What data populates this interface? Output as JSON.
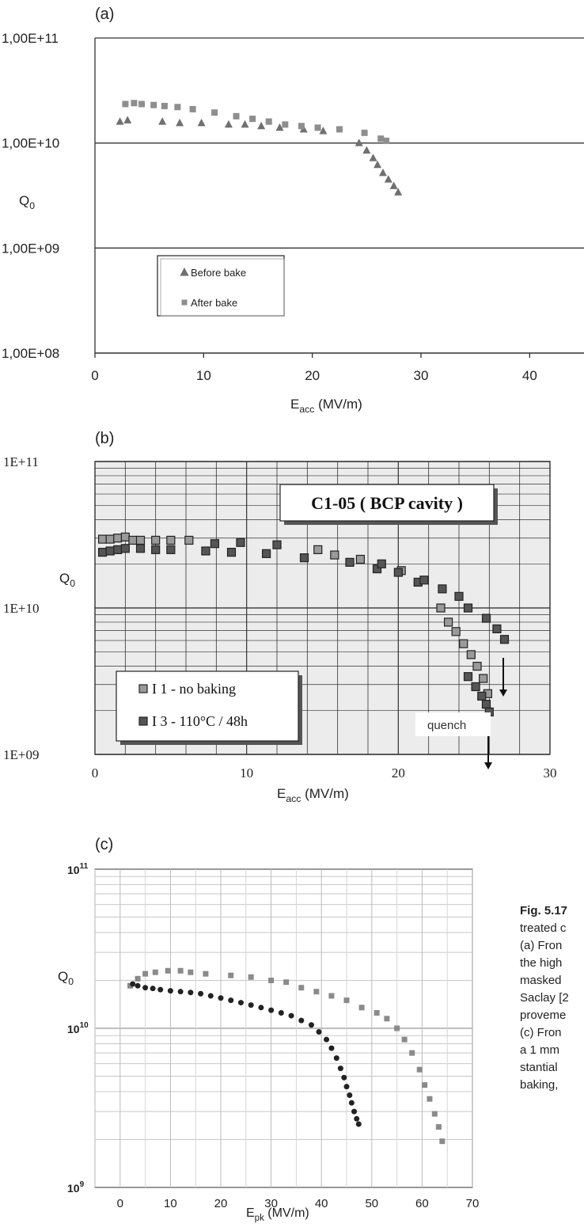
{
  "charts": [
    {
      "panel_label": "(a)",
      "y_tick_labels": [
        "1,00E+08",
        "1,00E+09",
        "1,00E+10",
        "1,00E+11"
      ],
      "x_tick_labels": [
        "0",
        "10",
        "20",
        "30",
        "40"
      ],
      "ylabel": "Q",
      "ylabel_sub": "0",
      "xlabel": "E",
      "xlabel_sub": "acc",
      "xlabel_unit": " (MV/m)",
      "legend": [
        "Before bake",
        "After bake"
      ]
    },
    {
      "panel_label": "(b)",
      "y_tick_labels": [
        "1E+09",
        "1E+10",
        "1E+11"
      ],
      "x_tick_labels": [
        "0",
        "10",
        "20",
        "30"
      ],
      "ylabel": "Q",
      "ylabel_sub": "0",
      "xlabel": "E",
      "xlabel_sub": "acc",
      "xlabel_unit": " (MV/m)",
      "title": "C1-05 ( BCP cavity )",
      "legend": [
        "I 1 - no baking",
        "I 3 - 110°C / 48h"
      ],
      "annotation": "quench"
    },
    {
      "panel_label": "(c)",
      "y_tick_labels": [
        "10",
        "10",
        "10"
      ],
      "y_tick_exponents": [
        "9",
        "10",
        "11"
      ],
      "x_tick_labels": [
        "0",
        "10",
        "20",
        "30",
        "40",
        "50",
        "60",
        "70"
      ],
      "ylabel": "Q",
      "ylabel_sub": "0",
      "xlabel": "E",
      "xlabel_sub": "pk",
      "xlabel_unit": " (MV/m)"
    }
  ],
  "caption": {
    "lines": [
      "Fig. 5.17",
      "treated c",
      "(a) Fron",
      "the high",
      "masked",
      "Saclay [2",
      "proveme",
      "(c) Fron",
      "a 1 mm",
      "stantial",
      "baking,"
    ]
  },
  "chart_data": [
    {
      "type": "scatter",
      "xlabel": "Eacc (MV/m)",
      "ylabel": "Q0",
      "xlim": [
        0,
        45
      ],
      "ylim": [
        100000000,
        100000000000
      ],
      "yscale": "log",
      "grid": "horizontal major",
      "legend_position": "lower-left",
      "series": [
        {
          "name": "Before bake",
          "marker": "triangle",
          "color": "#707070",
          "x": [
            2.3,
            3,
            6.2,
            7.8,
            9.8,
            12.3,
            13.8,
            15.3,
            17,
            19.2,
            21,
            24.3,
            25,
            25.6,
            26,
            26.5,
            27,
            27.5,
            27.9
          ],
          "y": [
            16000000000.0,
            16500000000.0,
            16000000000.0,
            15500000000.0,
            15500000000.0,
            15000000000.0,
            15000000000.0,
            14500000000.0,
            14000000000.0,
            13500000000.0,
            13000000000.0,
            10000000000.0,
            8500000000.0,
            7200000000.0,
            6200000000.0,
            5200000000.0,
            4500000000.0,
            3900000000.0,
            3400000000.0
          ]
        },
        {
          "name": "After bake",
          "marker": "square",
          "color": "#8e8e8e",
          "x": [
            2.8,
            3.6,
            4.3,
            5.4,
            6.4,
            7.6,
            9,
            11,
            13,
            14.5,
            16,
            17.5,
            19,
            20.5,
            22.5,
            24.8,
            26.3,
            26.8
          ],
          "y": [
            23500000000.0,
            24000000000.0,
            23500000000.0,
            23000000000.0,
            22500000000.0,
            22000000000.0,
            21000000000.0,
            19500000000.0,
            18000000000.0,
            17000000000.0,
            16000000000.0,
            15000000000.0,
            14500000000.0,
            14000000000.0,
            13500000000.0,
            12500000000.0,
            11000000000.0,
            10500000000.0
          ]
        }
      ]
    },
    {
      "type": "scatter",
      "title": "C1-05 ( BCP cavity )",
      "xlabel": "Eacc (MV/m)",
      "ylabel": "Q0",
      "xlim": [
        0,
        30
      ],
      "ylim": [
        1000000000,
        100000000000
      ],
      "yscale": "log",
      "grid": "on",
      "legend_position": "lower-left",
      "series": [
        {
          "name": "I 1 - no baking",
          "marker": "square",
          "color": "#9a9a9a",
          "x": [
            0.5,
            1,
            1.5,
            2,
            2.5,
            3,
            4,
            5,
            6.2,
            14.7,
            15.8,
            17.5,
            20.2,
            22.8,
            23.3,
            23.8,
            24.3,
            24.8,
            25.2,
            25.6,
            25.9
          ],
          "y": [
            29500000000.0,
            29500000000.0,
            30000000000.0,
            30500000000.0,
            29000000000.0,
            29000000000.0,
            29000000000.0,
            29000000000.0,
            29000000000.0,
            25000000000.0,
            23000000000.0,
            21500000000.0,
            18000000000.0,
            10000000000.0,
            8000000000.0,
            6900000000.0,
            5700000000.0,
            4800000000.0,
            4000000000.0,
            3300000000.0,
            2600000000.0
          ]
        },
        {
          "name": "I 3 - 110°C / 48h",
          "marker": "square",
          "color": "#555555",
          "x": [
            0.5,
            1,
            1.5,
            2,
            3,
            4,
            5,
            7.3,
            7.9,
            9,
            9.6,
            11.3,
            12,
            13.8,
            16.8,
            18.6,
            18.9,
            20,
            21.3,
            21.7,
            22.9,
            24,
            24.6,
            25.8,
            26.5,
            27,
            24.6,
            25.1,
            25.5,
            25.8,
            26
          ],
          "y": [
            24000000000.0,
            24500000000.0,
            25000000000.0,
            25500000000.0,
            25500000000.0,
            25000000000.0,
            25000000000.0,
            24500000000.0,
            27500000000.0,
            24000000000.0,
            28000000000.0,
            23500000000.0,
            27000000000.0,
            22000000000.0,
            20500000000.0,
            18500000000.0,
            20000000000.0,
            17500000000.0,
            15000000000.0,
            15500000000.0,
            13500000000.0,
            12000000000.0,
            10000000000.0,
            8500000000.0,
            7200000000.0,
            6100000000.0,
            3400000000.0,
            2900000000.0,
            2500000000.0,
            2200000000.0,
            1950000000.0
          ]
        }
      ]
    },
    {
      "type": "scatter",
      "xlabel": "Epk (MV/m)",
      "ylabel": "Q0",
      "xlim": [
        -5,
        70
      ],
      "ylim": [
        1000000000,
        100000000000
      ],
      "yscale": "log",
      "grid": "on",
      "series": [
        {
          "marker": "square",
          "color": "#8a8a8a",
          "x": [
            2,
            3.5,
            5,
            7,
            9.5,
            12,
            14,
            17,
            22,
            26,
            30,
            33,
            36,
            39,
            42,
            45,
            48,
            51,
            53,
            55,
            56.5,
            58,
            59.5,
            60.5,
            61.5,
            62.5,
            63.3,
            64
          ],
          "y": [
            18500000000.0,
            20500000000.0,
            22000000000.0,
            22500000000.0,
            23000000000.0,
            23000000000.0,
            22500000000.0,
            22000000000.0,
            21500000000.0,
            21000000000.0,
            20000000000.0,
            19500000000.0,
            18000000000.0,
            17000000000.0,
            16000000000.0,
            15000000000.0,
            13500000000.0,
            12500000000.0,
            11500000000.0,
            10000000000.0,
            8500000000.0,
            7000000000.0,
            5500000000.0,
            4400000000.0,
            3600000000.0,
            2900000000.0,
            2400000000.0,
            1950000000.0
          ]
        },
        {
          "marker": "circle",
          "color": "#222222",
          "x": [
            2.5,
            3.5,
            5,
            6.5,
            8,
            10,
            12,
            14,
            16,
            18,
            20,
            22,
            24,
            26,
            28,
            30,
            32,
            34,
            36,
            38,
            39.5,
            41,
            42,
            43,
            43.8,
            44.5,
            45,
            45.6,
            46,
            46.5,
            47,
            47.4
          ],
          "y": [
            19000000000.0,
            18500000000.0,
            18000000000.0,
            17800000000.0,
            17500000000.0,
            17200000000.0,
            17000000000.0,
            16800000000.0,
            16500000000.0,
            16000000000.0,
            15500000000.0,
            15000000000.0,
            14500000000.0,
            14000000000.0,
            13500000000.0,
            13000000000.0,
            12500000000.0,
            12000000000.0,
            11200000000.0,
            10500000000.0,
            9500000000.0,
            8500000000.0,
            7500000000.0,
            6500000000.0,
            5600000000.0,
            4900000000.0,
            4300000000.0,
            3800000000.0,
            3400000000.0,
            3000000000.0,
            2700000000.0,
            2500000000.0
          ]
        }
      ]
    }
  ]
}
